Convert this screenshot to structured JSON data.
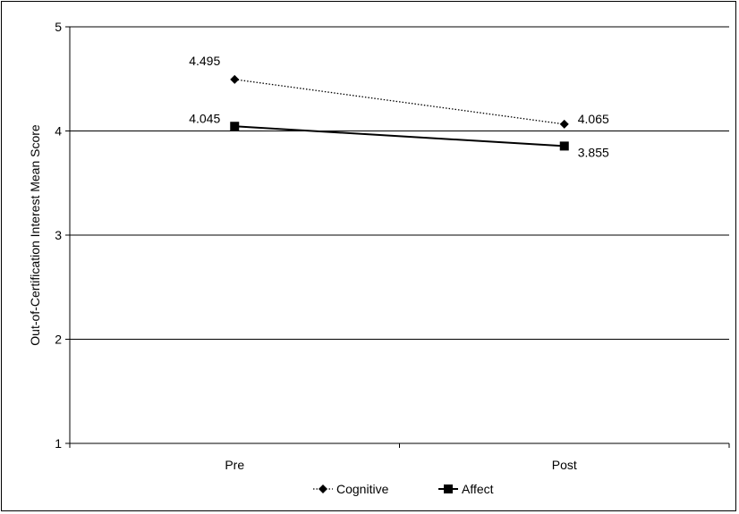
{
  "chart_data": {
    "type": "line",
    "title": "",
    "xlabel": "",
    "ylabel": "Out-of-Certification Interest Mean Score",
    "categories": [
      "Pre",
      "Post"
    ],
    "ylim": [
      1,
      5
    ],
    "yticks": [
      1,
      2,
      3,
      4,
      5
    ],
    "grid": true,
    "legend_position": "bottom",
    "series": [
      {
        "name": "Cognitive",
        "values": [
          4.495,
          4.065
        ],
        "labels": [
          "4.495",
          "4.065"
        ],
        "line_style": "dotted",
        "marker": "diamond",
        "color": "#000000"
      },
      {
        "name": "Affect",
        "values": [
          4.045,
          3.855
        ],
        "labels": [
          "4.045",
          "3.855"
        ],
        "line_style": "solid",
        "marker": "square",
        "color": "#000000"
      }
    ]
  }
}
